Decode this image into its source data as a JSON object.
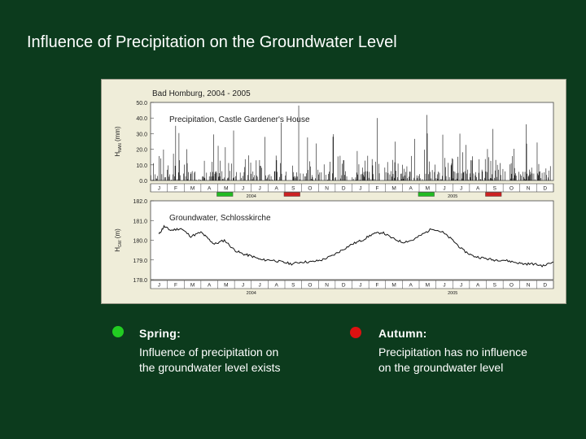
{
  "slide": {
    "title": "Influence of Precipitation on the Groundwater Level"
  },
  "legend": {
    "spring": {
      "title": "Spring:",
      "line1": "Influence of precipitation on",
      "line2": "the groundwater level exists",
      "color": "#22cc22"
    },
    "autumn": {
      "title": "Autumn:",
      "line1": "Precipitation has no influence",
      "line2": "on the groundwater level",
      "color": "#dd1111"
    }
  },
  "chart_data": [
    {
      "type": "bar",
      "figure_label": "Bad Homburg, 2004 - 2005",
      "title": "Precipitation, Castle Gardener's House",
      "ylabel_main": "H",
      "ylabel_sub": "NAN",
      "ylabel_unit": "(mm)",
      "ylim": [
        0,
        50
      ],
      "yticks": [
        "50.0",
        "40.0",
        "30.0",
        "20.0",
        "10.0",
        "0.0"
      ],
      "month_labels": [
        "J",
        "F",
        "M",
        "A",
        "M",
        "J",
        "J",
        "A",
        "S",
        "O",
        "N",
        "D",
        "J",
        "F",
        "M",
        "A",
        "M",
        "J",
        "J",
        "A",
        "S",
        "O",
        "N",
        "D"
      ],
      "year_labels": [
        "2004",
        "2005"
      ],
      "highlights": [
        {
          "label": "spring",
          "months": [
            4,
            5
          ],
          "color": "#22bb22"
        },
        {
          "label": "autumn",
          "months": [
            8,
            9
          ],
          "color": "#cc2222"
        },
        {
          "label": "spring",
          "months": [
            16,
            17
          ],
          "color": "#22bb22"
        },
        {
          "label": "autumn",
          "months": [
            20,
            21
          ],
          "color": "#cc2222"
        }
      ],
      "series": [
        {
          "values_note": "daily precipitation (mm), approximate, 2004-2005",
          "values": []
        }
      ]
    },
    {
      "type": "line",
      "title": "Groundwater, Schlosskirche",
      "ylabel_main": "H",
      "ylabel_sub": "GW",
      "ylabel_unit": "(m)",
      "ylim": [
        178,
        182
      ],
      "yticks": [
        "182.0",
        "181.0",
        "180.0",
        "179.0",
        "178.0"
      ],
      "month_labels": [
        "J",
        "F",
        "M",
        "A",
        "M",
        "J",
        "J",
        "A",
        "S",
        "O",
        "N",
        "D",
        "J",
        "F",
        "M",
        "A",
        "M",
        "J",
        "J",
        "A",
        "S",
        "O",
        "N",
        "D"
      ],
      "year_labels": [
        "2004",
        "2005"
      ],
      "series": [
        {
          "x_month": [
            0.5,
            0.8,
            1.2,
            1.8,
            2.4,
            3.0,
            3.4,
            3.8,
            4.4,
            5.0,
            5.5,
            6.0,
            6.6,
            7.2,
            7.8,
            8.4,
            9.0,
            9.6,
            10.2,
            10.8,
            11.4,
            12.0,
            12.6,
            13.2,
            13.8,
            14.4,
            15.0,
            15.6,
            16.2,
            16.8,
            17.4,
            18.0,
            18.6,
            19.2,
            19.8,
            20.4,
            21.0,
            21.6,
            22.2,
            22.8,
            23.4,
            24.0
          ],
          "y_m": [
            180.3,
            180.7,
            180.5,
            180.6,
            180.2,
            180.4,
            180.1,
            179.8,
            180.0,
            179.5,
            179.3,
            179.2,
            179.0,
            179.0,
            178.9,
            178.8,
            178.9,
            178.9,
            179.0,
            179.2,
            179.5,
            179.8,
            180.0,
            180.3,
            180.4,
            180.1,
            179.9,
            180.0,
            180.3,
            180.6,
            180.4,
            180.0,
            179.5,
            179.2,
            179.1,
            179.0,
            179.0,
            178.9,
            178.8,
            178.8,
            178.7,
            178.9
          ]
        }
      ]
    }
  ]
}
